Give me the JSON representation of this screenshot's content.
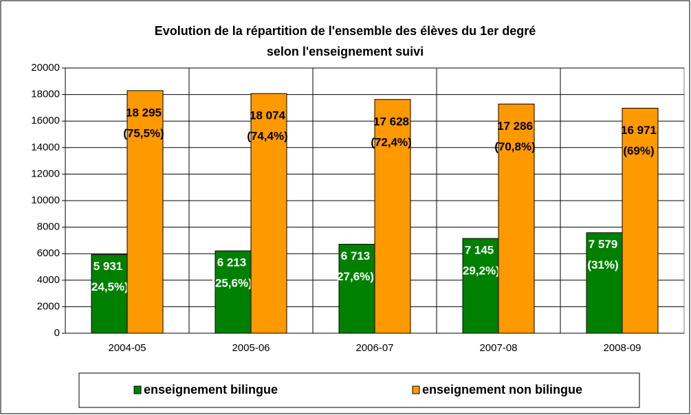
{
  "chart_data": {
    "type": "bar",
    "title": [
      "Evolution de la répartition de l'ensemble des élèves du 1er degré",
      "selon l'enseignement suivi"
    ],
    "categories": [
      "2004-05",
      "2005-06",
      "2006-07",
      "2007-08",
      "2008-09"
    ],
    "series": [
      {
        "name": "enseignement bilingue",
        "color": "#008000",
        "label_color": "#ffffff",
        "values": [
          5931,
          6213,
          6713,
          7145,
          7579
        ],
        "value_labels": [
          "5 931",
          "6 213",
          "6 713",
          "7 145",
          "7 579"
        ],
        "shares": [
          24.5,
          25.6,
          27.6,
          29.2,
          31
        ],
        "share_labels": [
          "(24,5%)",
          "(25,6%)",
          "27,6%)",
          "(29,2%)",
          "(31%)"
        ]
      },
      {
        "name": "enseignement non bilingue",
        "color": "#ff9900",
        "label_color": "#000000",
        "values": [
          18295,
          18074,
          17628,
          17286,
          16971
        ],
        "value_labels": [
          "18 295",
          "18 074",
          "17 628",
          "17 286",
          "16 971"
        ],
        "shares": [
          75.5,
          74.4,
          72.4,
          70.8,
          69
        ],
        "share_labels": [
          "(75,5%)",
          "(74,4%)",
          "(72,4%)",
          "(70,8%)",
          "(69%)"
        ]
      }
    ],
    "ylim": [
      0,
      20000
    ],
    "yticks": [
      0,
      2000,
      4000,
      6000,
      8000,
      10000,
      12000,
      14000,
      16000,
      18000,
      20000
    ],
    "grid": true,
    "legend": "bottom"
  }
}
